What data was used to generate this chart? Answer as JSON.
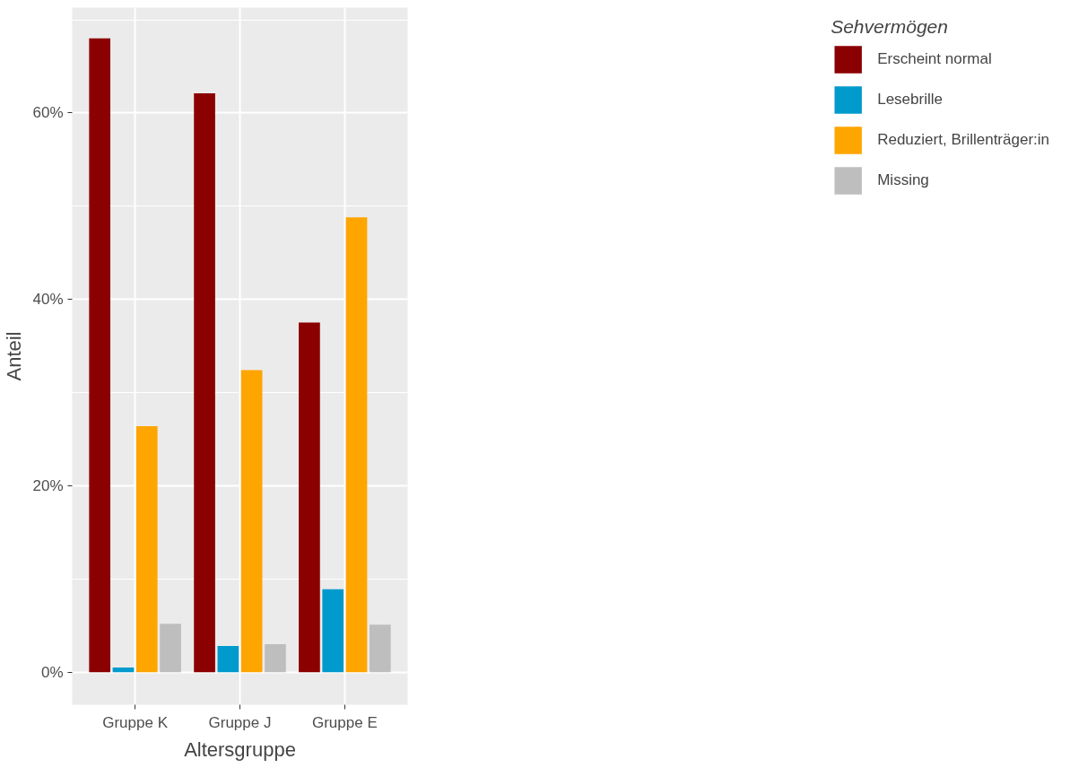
{
  "chart_data": {
    "type": "bar",
    "xlabel": "Altersgruppe",
    "ylabel": "Anteil",
    "legend_title": "Sehvermögen",
    "categories": [
      "Gruppe K",
      "Gruppe J",
      "Gruppe E"
    ],
    "series": [
      {
        "name": "Erscheint normal",
        "color": "#8b0000",
        "values": [
          68.0,
          62.1,
          37.5
        ]
      },
      {
        "name": "Lesebrille",
        "color": "#009acd",
        "values": [
          0.5,
          2.8,
          8.9
        ]
      },
      {
        "name": "Reduziert, Brillenträger:in",
        "color": "#ffa500",
        "values": [
          26.4,
          32.4,
          48.8
        ]
      },
      {
        "name": "Missing",
        "color": "#bebebe",
        "values": [
          5.2,
          3.0,
          5.1
        ]
      }
    ],
    "ylim": [
      -3.5,
      71.3
    ],
    "yticks": [
      {
        "value": 0,
        "label": "0%"
      },
      {
        "value": 20,
        "label": "20%"
      },
      {
        "value": 40,
        "label": "40%"
      },
      {
        "value": 60,
        "label": "60%"
      }
    ],
    "grid": true,
    "legend": "right"
  }
}
